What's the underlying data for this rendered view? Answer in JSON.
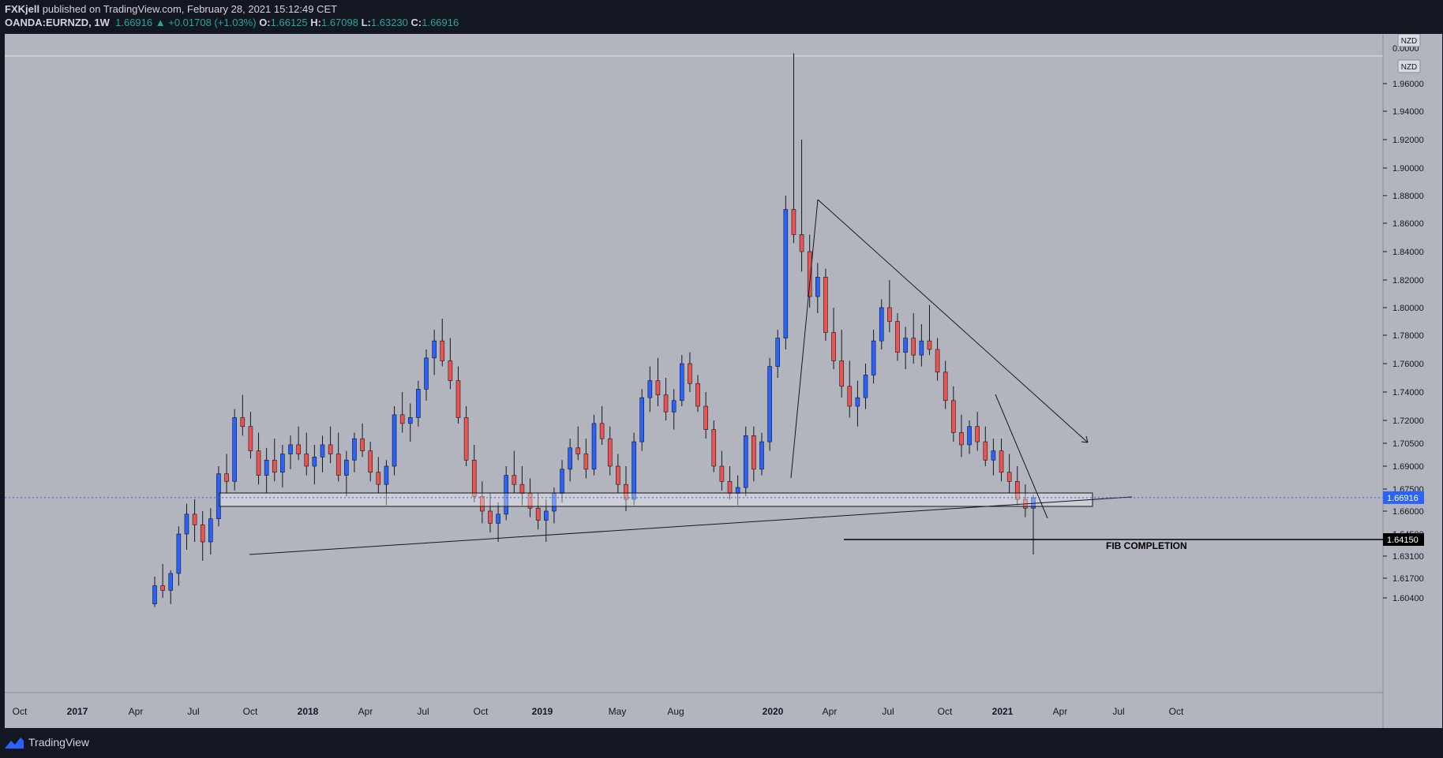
{
  "header": {
    "author": "FXKjell",
    "published": "published on TradingView.com, February 28, 2021 15:12:49 CET",
    "symbol": "OANDA:EURNZD, 1W",
    "last": "1.66916",
    "change_arrow": "▲",
    "change": "+0.01708 (+1.03%)",
    "o_label": "O:",
    "o": "1.66125",
    "h_label": "H:",
    "h": "1.67098",
    "l_label": "L:",
    "l": "1.63230",
    "c_label": "C:",
    "c": "1.66916"
  },
  "footer": {
    "brand": "TradingView",
    "logo_icon": "tradingview-logo-icon"
  },
  "colors": {
    "plot_bg": "#b2b5be",
    "up": "#2962ff",
    "down": "#ef5350",
    "axis_bg": "#b2b5be",
    "text": "#131722",
    "last_price_line": "#2962ff"
  },
  "chart_data": {
    "type": "candlestick",
    "currency_badge": "NZD",
    "y_tick_labels": [
      "0.0000",
      "1.96000",
      "1.94000",
      "1.92000",
      "1.90000",
      "1.88000",
      "1.86000",
      "1.84000",
      "1.82000",
      "1.80000",
      "1.78000",
      "1.76000",
      "1.74000",
      "1.72000",
      "1.70500",
      "1.69000",
      "1.67500",
      "1.66000",
      "1.64500",
      "1.63100",
      "1.61700",
      "1.60400"
    ],
    "x_tick_labels": [
      "Oct",
      "2017",
      "Apr",
      "Jul",
      "Oct",
      "2018",
      "Apr",
      "Jul",
      "Oct",
      "2019",
      "May",
      "Aug",
      "2020",
      "Apr",
      "Jul",
      "Oct",
      "2021",
      "Apr",
      "Jul",
      "Oct"
    ],
    "bold_x_labels": [
      "2017",
      "2018",
      "2019",
      "2020",
      "2021"
    ],
    "last_price_label": "1.66916",
    "fib_price_label": "1.64150",
    "annotation": "FIB COMPLETION",
    "ohlc_weekly_approx": [
      [
        1.6,
        1.618,
        1.598,
        1.612
      ],
      [
        1.612,
        1.626,
        1.604,
        1.609
      ],
      [
        1.609,
        1.622,
        1.6,
        1.62
      ],
      [
        1.62,
        1.65,
        1.612,
        1.645
      ],
      [
        1.645,
        1.665,
        1.635,
        1.658
      ],
      [
        1.658,
        1.668,
        1.64,
        1.651
      ],
      [
        1.651,
        1.66,
        1.628,
        1.64
      ],
      [
        1.64,
        1.662,
        1.632,
        1.655
      ],
      [
        1.655,
        1.69,
        1.65,
        1.685
      ],
      [
        1.685,
        1.698,
        1.672,
        1.68
      ],
      [
        1.68,
        1.728,
        1.674,
        1.722
      ],
      [
        1.722,
        1.738,
        1.71,
        1.716
      ],
      [
        1.716,
        1.726,
        1.695,
        1.7
      ],
      [
        1.7,
        1.712,
        1.678,
        1.684
      ],
      [
        1.684,
        1.702,
        1.672,
        1.694
      ],
      [
        1.694,
        1.708,
        1.68,
        1.686
      ],
      [
        1.686,
        1.704,
        1.676,
        1.698
      ],
      [
        1.698,
        1.71,
        1.688,
        1.704
      ],
      [
        1.704,
        1.716,
        1.694,
        1.698
      ],
      [
        1.698,
        1.712,
        1.684,
        1.69
      ],
      [
        1.69,
        1.704,
        1.678,
        1.696
      ],
      [
        1.696,
        1.71,
        1.686,
        1.704
      ],
      [
        1.704,
        1.716,
        1.692,
        1.698
      ],
      [
        1.698,
        1.712,
        1.68,
        1.684
      ],
      [
        1.684,
        1.7,
        1.67,
        1.694
      ],
      [
        1.694,
        1.712,
        1.686,
        1.708
      ],
      [
        1.708,
        1.718,
        1.696,
        1.7
      ],
      [
        1.7,
        1.706,
        1.68,
        1.686
      ],
      [
        1.686,
        1.696,
        1.672,
        1.678
      ],
      [
        1.678,
        1.694,
        1.664,
        1.69
      ],
      [
        1.69,
        1.73,
        1.684,
        1.724
      ],
      [
        1.724,
        1.74,
        1.712,
        1.718
      ],
      [
        1.718,
        1.732,
        1.706,
        1.722
      ],
      [
        1.722,
        1.748,
        1.716,
        1.742
      ],
      [
        1.742,
        1.77,
        1.734,
        1.764
      ],
      [
        1.764,
        1.784,
        1.752,
        1.776
      ],
      [
        1.776,
        1.792,
        1.758,
        1.762
      ],
      [
        1.762,
        1.778,
        1.742,
        1.748
      ],
      [
        1.748,
        1.758,
        1.718,
        1.722
      ],
      [
        1.722,
        1.73,
        1.69,
        1.694
      ],
      [
        1.694,
        1.704,
        1.666,
        1.67
      ],
      [
        1.67,
        1.68,
        1.652,
        1.66
      ],
      [
        1.66,
        1.672,
        1.646,
        1.652
      ],
      [
        1.652,
        1.666,
        1.64,
        1.658
      ],
      [
        1.658,
        1.69,
        1.654,
        1.684
      ],
      [
        1.684,
        1.7,
        1.672,
        1.678
      ],
      [
        1.678,
        1.69,
        1.664,
        1.672
      ],
      [
        1.672,
        1.682,
        1.656,
        1.662
      ],
      [
        1.662,
        1.672,
        1.648,
        1.654
      ],
      [
        1.654,
        1.668,
        1.64,
        1.66
      ],
      [
        1.66,
        1.676,
        1.652,
        1.672
      ],
      [
        1.672,
        1.694,
        1.666,
        1.688
      ],
      [
        1.688,
        1.708,
        1.68,
        1.702
      ],
      [
        1.702,
        1.716,
        1.694,
        1.698
      ],
      [
        1.698,
        1.708,
        1.682,
        1.688
      ],
      [
        1.688,
        1.724,
        1.684,
        1.718
      ],
      [
        1.718,
        1.73,
        1.704,
        1.708
      ],
      [
        1.708,
        1.716,
        1.684,
        1.69
      ],
      [
        1.69,
        1.698,
        1.672,
        1.678
      ],
      [
        1.678,
        1.69,
        1.66,
        1.668
      ],
      [
        1.668,
        1.712,
        1.664,
        1.706
      ],
      [
        1.706,
        1.742,
        1.7,
        1.736
      ],
      [
        1.736,
        1.758,
        1.726,
        1.748
      ],
      [
        1.748,
        1.764,
        1.73,
        1.738
      ],
      [
        1.738,
        1.75,
        1.72,
        1.726
      ],
      [
        1.726,
        1.742,
        1.714,
        1.734
      ],
      [
        1.734,
        1.766,
        1.73,
        1.76
      ],
      [
        1.76,
        1.768,
        1.74,
        1.746
      ],
      [
        1.746,
        1.752,
        1.726,
        1.73
      ],
      [
        1.73,
        1.74,
        1.708,
        1.714
      ],
      [
        1.714,
        1.72,
        1.686,
        1.69
      ],
      [
        1.69,
        1.7,
        1.674,
        1.68
      ],
      [
        1.68,
        1.69,
        1.668,
        1.672
      ],
      [
        1.672,
        1.684,
        1.664,
        1.676
      ],
      [
        1.676,
        1.716,
        1.67,
        1.71
      ],
      [
        1.71,
        1.716,
        1.68,
        1.688
      ],
      [
        1.688,
        1.712,
        1.684,
        1.706
      ],
      [
        1.706,
        1.764,
        1.7,
        1.758
      ],
      [
        1.758,
        1.784,
        1.75,
        1.778
      ],
      [
        1.778,
        1.88,
        1.77,
        1.87
      ],
      [
        1.87,
        1.982,
        1.846,
        1.852
      ],
      [
        1.852,
        1.92,
        1.826,
        1.84
      ],
      [
        1.84,
        1.852,
        1.8,
        1.808
      ],
      [
        1.808,
        1.832,
        1.796,
        1.822
      ],
      [
        1.822,
        1.828,
        1.776,
        1.782
      ],
      [
        1.782,
        1.8,
        1.756,
        1.762
      ],
      [
        1.762,
        1.784,
        1.736,
        1.744
      ],
      [
        1.744,
        1.762,
        1.722,
        1.73
      ],
      [
        1.73,
        1.748,
        1.716,
        1.736
      ],
      [
        1.736,
        1.76,
        1.728,
        1.752
      ],
      [
        1.752,
        1.784,
        1.746,
        1.776
      ],
      [
        1.776,
        1.806,
        1.77,
        1.8
      ],
      [
        1.8,
        1.82,
        1.782,
        1.79
      ],
      [
        1.79,
        1.796,
        1.762,
        1.768
      ],
      [
        1.768,
        1.786,
        1.756,
        1.778
      ],
      [
        1.778,
        1.796,
        1.76,
        1.766
      ],
      [
        1.766,
        1.788,
        1.758,
        1.776
      ],
      [
        1.776,
        1.802,
        1.766,
        1.77
      ],
      [
        1.77,
        1.778,
        1.748,
        1.754
      ],
      [
        1.754,
        1.762,
        1.728,
        1.734
      ],
      [
        1.734,
        1.744,
        1.706,
        1.712
      ],
      [
        1.712,
        1.724,
        1.696,
        1.704
      ],
      [
        1.704,
        1.72,
        1.698,
        1.716
      ],
      [
        1.716,
        1.726,
        1.7,
        1.706
      ],
      [
        1.706,
        1.716,
        1.69,
        1.694
      ],
      [
        1.694,
        1.708,
        1.684,
        1.7
      ],
      [
        1.7,
        1.708,
        1.68,
        1.686
      ],
      [
        1.686,
        1.698,
        1.672,
        1.68
      ],
      [
        1.68,
        1.69,
        1.664,
        1.668
      ],
      [
        1.668,
        1.678,
        1.656,
        1.662
      ],
      [
        1.662,
        1.671,
        1.632,
        1.669
      ]
    ]
  }
}
